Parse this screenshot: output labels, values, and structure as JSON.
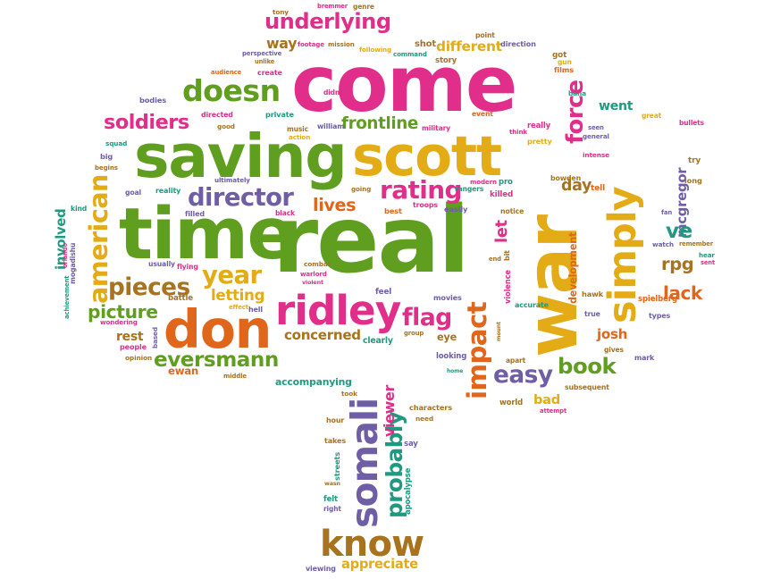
{
  "palette": {
    "pink": "#e02e8a",
    "green": "#5f9e1f",
    "orange": "#e0661b",
    "gold": "#e3ac16",
    "purple": "#6f5ea6",
    "teal": "#1f9a80",
    "brown": "#a7731f"
  },
  "words": [
    {
      "text": "come",
      "color": "pink"
    },
    {
      "text": "real",
      "color": "green"
    },
    {
      "text": "war",
      "color": "gold"
    },
    {
      "text": "saving",
      "color": "green"
    },
    {
      "text": "scott",
      "color": "gold"
    },
    {
      "text": "time",
      "color": "green"
    },
    {
      "text": "don",
      "color": "orange"
    },
    {
      "text": "ridley",
      "color": "pink"
    },
    {
      "text": "simply",
      "color": "gold"
    },
    {
      "text": "doesn",
      "color": "green"
    },
    {
      "text": "underlying",
      "color": "pink"
    },
    {
      "text": "know",
      "color": "brown"
    },
    {
      "text": "somali",
      "color": "purple"
    },
    {
      "text": "director",
      "color": "purple"
    },
    {
      "text": "american",
      "color": "gold"
    },
    {
      "text": "impact",
      "color": "orange"
    },
    {
      "text": "probably",
      "color": "teal"
    },
    {
      "text": "rating",
      "color": "pink"
    },
    {
      "text": "pieces",
      "color": "brown"
    },
    {
      "text": "year",
      "color": "gold"
    },
    {
      "text": "book",
      "color": "green"
    },
    {
      "text": "easy",
      "color": "purple"
    },
    {
      "text": "eversmann",
      "color": "green"
    },
    {
      "text": "soldiers",
      "color": "pink"
    },
    {
      "text": "force",
      "color": "pink"
    },
    {
      "text": "frontline",
      "color": "green"
    },
    {
      "text": "flag",
      "color": "pink"
    },
    {
      "text": "lives",
      "color": "orange"
    },
    {
      "text": "different",
      "color": "gold"
    },
    {
      "text": "picture",
      "color": "green"
    },
    {
      "text": "letting",
      "color": "gold"
    },
    {
      "text": "mcgregor",
      "color": "purple"
    },
    {
      "text": "rpg",
      "color": "brown"
    },
    {
      "text": "ve",
      "color": "teal"
    },
    {
      "text": "lack",
      "color": "orange"
    },
    {
      "text": "went",
      "color": "teal"
    },
    {
      "text": "concerned",
      "color": "brown"
    },
    {
      "text": "day",
      "color": "brown"
    },
    {
      "text": "way",
      "color": "brown"
    },
    {
      "text": "josh",
      "color": "orange"
    },
    {
      "text": "eye",
      "color": "brown"
    },
    {
      "text": "bad",
      "color": "gold"
    },
    {
      "text": "ewan",
      "color": "orange"
    },
    {
      "text": "rest",
      "color": "brown"
    },
    {
      "text": "involved",
      "color": "teal"
    },
    {
      "text": "accompanying",
      "color": "teal"
    },
    {
      "text": "appreciate",
      "color": "gold"
    },
    {
      "text": "viewer",
      "color": "pink"
    },
    {
      "text": "let",
      "color": "pink"
    },
    {
      "text": "battle",
      "color": "brown"
    },
    {
      "text": "shot",
      "color": "brown"
    },
    {
      "text": "music",
      "color": "brown"
    },
    {
      "text": "tony",
      "color": "brown"
    },
    {
      "text": "bremmer",
      "color": "pink"
    },
    {
      "text": "genre",
      "color": "brown"
    },
    {
      "text": "footage",
      "color": "pink"
    },
    {
      "text": "mission",
      "color": "brown"
    },
    {
      "text": "perspective",
      "color": "purple"
    },
    {
      "text": "unlike",
      "color": "brown"
    },
    {
      "text": "audience",
      "color": "orange"
    },
    {
      "text": "create",
      "color": "pink"
    },
    {
      "text": "following",
      "color": "gold"
    },
    {
      "text": "command",
      "color": "teal"
    },
    {
      "text": "story",
      "color": "brown"
    },
    {
      "text": "point",
      "color": "brown"
    },
    {
      "text": "direction",
      "color": "purple"
    },
    {
      "text": "got",
      "color": "brown"
    },
    {
      "text": "gun",
      "color": "gold"
    },
    {
      "text": "films",
      "color": "orange"
    },
    {
      "text": "bodies",
      "color": "purple"
    },
    {
      "text": "didn",
      "color": "pink"
    },
    {
      "text": "private",
      "color": "teal"
    },
    {
      "text": "directed",
      "color": "pink"
    },
    {
      "text": "good",
      "color": "brown"
    },
    {
      "text": "william",
      "color": "purple"
    },
    {
      "text": "action",
      "color": "gold"
    },
    {
      "text": "military",
      "color": "pink"
    },
    {
      "text": "event",
      "color": "orange"
    },
    {
      "text": "really",
      "color": "pink"
    },
    {
      "text": "think",
      "color": "pink"
    },
    {
      "text": "pretty",
      "color": "gold"
    },
    {
      "text": "seen",
      "color": "purple"
    },
    {
      "text": "general",
      "color": "purple"
    },
    {
      "text": "bana",
      "color": "teal"
    },
    {
      "text": "great",
      "color": "gold"
    },
    {
      "text": "bullets",
      "color": "pink"
    },
    {
      "text": "squad",
      "color": "teal"
    },
    {
      "text": "big",
      "color": "purple"
    },
    {
      "text": "begins",
      "color": "brown"
    },
    {
      "text": "ultimately",
      "color": "purple"
    },
    {
      "text": "reality",
      "color": "teal"
    },
    {
      "text": "modern",
      "color": "pink"
    },
    {
      "text": "pro",
      "color": "teal"
    },
    {
      "text": "going",
      "color": "brown"
    },
    {
      "text": "rangers",
      "color": "teal"
    },
    {
      "text": "killed",
      "color": "pink"
    },
    {
      "text": "intense",
      "color": "pink"
    },
    {
      "text": "bowden",
      "color": "brown"
    },
    {
      "text": "tell",
      "color": "orange"
    },
    {
      "text": "try",
      "color": "brown"
    },
    {
      "text": "long",
      "color": "brown"
    },
    {
      "text": "goal",
      "color": "purple"
    },
    {
      "text": "kind",
      "color": "teal"
    },
    {
      "text": "filled",
      "color": "purple"
    },
    {
      "text": "black",
      "color": "pink"
    },
    {
      "text": "troops",
      "color": "pink"
    },
    {
      "text": "best",
      "color": "orange"
    },
    {
      "text": "easily",
      "color": "purple"
    },
    {
      "text": "notice",
      "color": "brown"
    },
    {
      "text": "fan",
      "color": "purple"
    },
    {
      "text": "watch",
      "color": "purple"
    },
    {
      "text": "remember",
      "color": "brown"
    },
    {
      "text": "hear",
      "color": "teal"
    },
    {
      "text": "sent",
      "color": "pink"
    },
    {
      "text": "usually",
      "color": "purple"
    },
    {
      "text": "flying",
      "color": "pink"
    },
    {
      "text": "combat",
      "color": "brown"
    },
    {
      "text": "end",
      "color": "brown"
    },
    {
      "text": "bit",
      "color": "brown"
    },
    {
      "text": "development",
      "color": "orange"
    },
    {
      "text": "warlord",
      "color": "pink"
    },
    {
      "text": "violent",
      "color": "pink"
    },
    {
      "text": "hell",
      "color": "purple"
    },
    {
      "text": "effect",
      "color": "gold"
    },
    {
      "text": "feel",
      "color": "purple"
    },
    {
      "text": "movies",
      "color": "purple"
    },
    {
      "text": "violence",
      "color": "pink"
    },
    {
      "text": "accurate",
      "color": "teal"
    },
    {
      "text": "hawk",
      "color": "brown"
    },
    {
      "text": "spielberg",
      "color": "orange"
    },
    {
      "text": "true",
      "color": "purple"
    },
    {
      "text": "types",
      "color": "purple"
    },
    {
      "text": "wondering",
      "color": "pink"
    },
    {
      "text": "people",
      "color": "pink"
    },
    {
      "text": "opinion",
      "color": "brown"
    },
    {
      "text": "based",
      "color": "purple"
    },
    {
      "text": "clearly",
      "color": "teal"
    },
    {
      "text": "group",
      "color": "brown"
    },
    {
      "text": "mount",
      "color": "brown"
    },
    {
      "text": "gives",
      "color": "brown"
    },
    {
      "text": "mark",
      "color": "purple"
    },
    {
      "text": "looking",
      "color": "purple"
    },
    {
      "text": "apart",
      "color": "brown"
    },
    {
      "text": "home",
      "color": "teal"
    },
    {
      "text": "middle",
      "color": "brown"
    },
    {
      "text": "took",
      "color": "brown"
    },
    {
      "text": "subsequent",
      "color": "brown"
    },
    {
      "text": "world",
      "color": "brown"
    },
    {
      "text": "attempt",
      "color": "pink"
    },
    {
      "text": "characters",
      "color": "brown"
    },
    {
      "text": "need",
      "color": "brown"
    },
    {
      "text": "hour",
      "color": "brown"
    },
    {
      "text": "takes",
      "color": "brown"
    },
    {
      "text": "say",
      "color": "purple"
    },
    {
      "text": "streets",
      "color": "teal"
    },
    {
      "text": "wasn",
      "color": "brown"
    },
    {
      "text": "felt",
      "color": "teal"
    },
    {
      "text": "right",
      "color": "purple"
    },
    {
      "text": "apocalypse",
      "color": "teal"
    },
    {
      "text": "viewing",
      "color": "purple"
    },
    {
      "text": "mogadishu",
      "color": "purple"
    },
    {
      "text": "orlando",
      "color": "pink"
    },
    {
      "text": "achievement",
      "color": "teal"
    }
  ]
}
